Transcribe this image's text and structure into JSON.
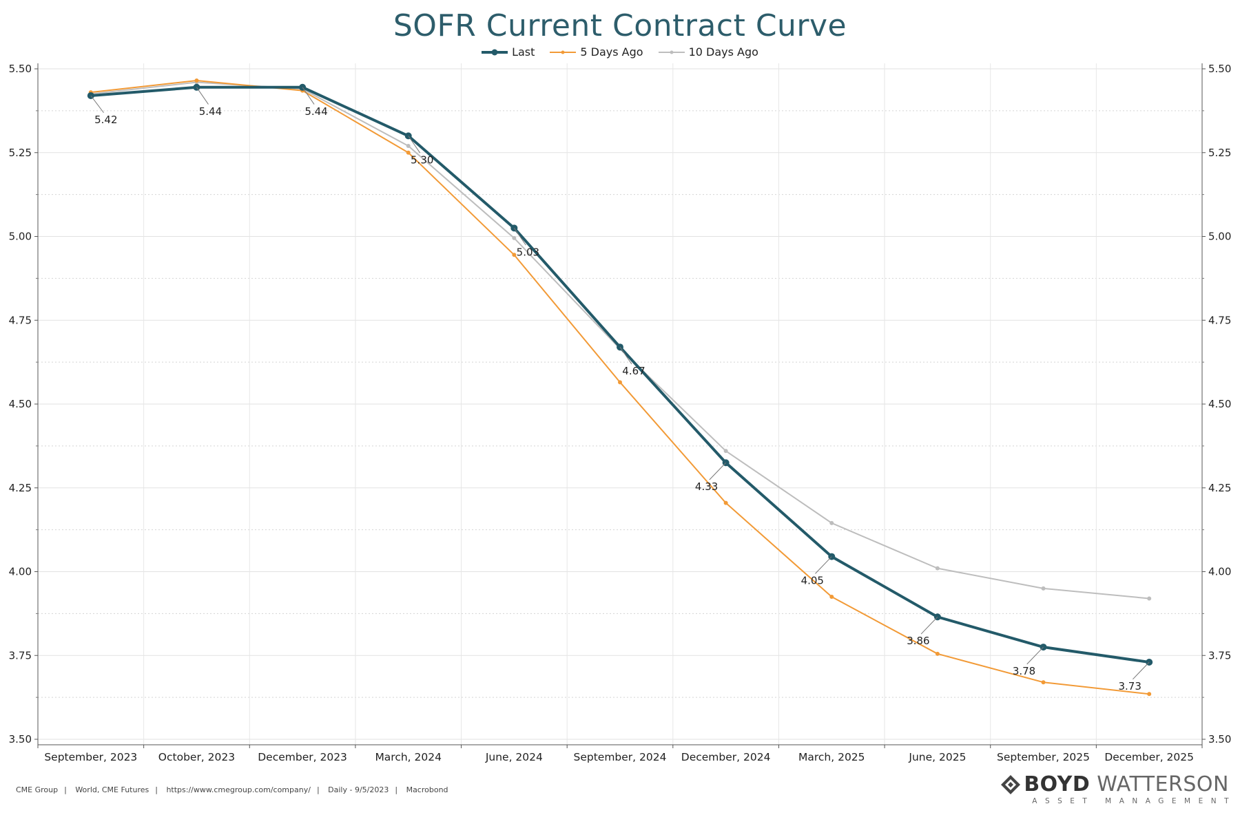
{
  "chart_data": {
    "type": "line",
    "title": "SOFR Current Contract Curve",
    "categories": [
      "September, 2023",
      "October, 2023",
      "December, 2023",
      "March, 2024",
      "June, 2024",
      "September, 2024",
      "December, 2024",
      "March, 2025",
      "June, 2025",
      "September, 2025",
      "December, 2025"
    ],
    "series": [
      {
        "name": "Last",
        "color": "#235a69",
        "values": [
          5.42,
          5.445,
          5.445,
          5.3,
          5.025,
          4.67,
          4.325,
          4.045,
          3.865,
          3.775,
          3.73
        ],
        "labels": [
          "5.42",
          "5.44",
          "5.44",
          "5.30",
          "5.03",
          "4.67",
          "4.33",
          "4.05",
          "3.86",
          "3.78",
          "3.73"
        ]
      },
      {
        "name": "5 Days Ago",
        "color": "#f29a36",
        "values": [
          5.43,
          5.465,
          5.435,
          5.25,
          4.945,
          4.565,
          4.205,
          3.925,
          3.755,
          3.67,
          3.635
        ]
      },
      {
        "name": "10 Days Ago",
        "color": "#bdbdbd",
        "values": [
          5.425,
          5.46,
          5.44,
          5.27,
          4.995,
          4.665,
          4.36,
          4.145,
          4.01,
          3.95,
          3.92
        ]
      }
    ],
    "yticks": [
      "5.50",
      "5.25",
      "5.00",
      "4.75",
      "4.50",
      "4.25",
      "4.00",
      "3.75",
      "3.50"
    ],
    "ylim": [
      3.5,
      5.5
    ],
    "grid": true,
    "legend_position": "top-center",
    "dual_y_axis": true
  },
  "footer": {
    "items": [
      "CME Group",
      "World, CME Futures",
      "https://www.cmegroup.com/company/",
      "Daily - 9/5/2023",
      "Macrobond"
    ]
  },
  "brand": {
    "name_bold": "BOYD",
    "name_light": "WATTERSON",
    "tagline": "ASSET MANAGEMENT",
    "logo_icon": "diamond-logo-icon"
  }
}
